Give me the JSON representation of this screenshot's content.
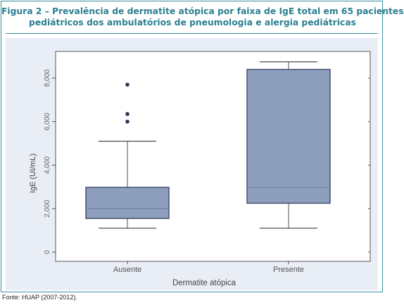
{
  "figure": {
    "title_line1": "Figura 2 – Prevalência de dermatite atópica por faixa de IgE total em 65 pacientes",
    "title_line2": "pediátricos dos ambulatórios de pneumologia e alergia pediátricas",
    "source": "Fonte: HUAP (2007-2012)."
  },
  "colors": {
    "border": "#3b8fa0",
    "title": "#2a7f91",
    "plot_background": "#e9edf5",
    "box_fill": "#8e9fbe",
    "box_stroke": "#3a4a6a",
    "whisker": "#4a4a5a"
  },
  "chart_data": {
    "type": "boxplot",
    "xlabel": "Dermatite atópica",
    "ylabel": "IgE (UI/mL)",
    "ylim": [
      0,
      9000
    ],
    "yticks": [
      0,
      2000,
      4000,
      6000,
      8000
    ],
    "ytick_labels": [
      "0",
      "2,000",
      "4,000",
      "6,000",
      "8,000"
    ],
    "grid": false,
    "categories": [
      "Ausente",
      "Presente"
    ],
    "boxes": [
      {
        "name": "Ausente",
        "min": 1100,
        "q1": 1550,
        "median": 2000,
        "q3": 2980,
        "max": 5100,
        "outliers": [
          6000,
          6350,
          7700
        ]
      },
      {
        "name": "Presente",
        "min": 1100,
        "q1": 2250,
        "median": 2980,
        "q3": 8400,
        "max": 8750,
        "outliers": []
      }
    ]
  }
}
